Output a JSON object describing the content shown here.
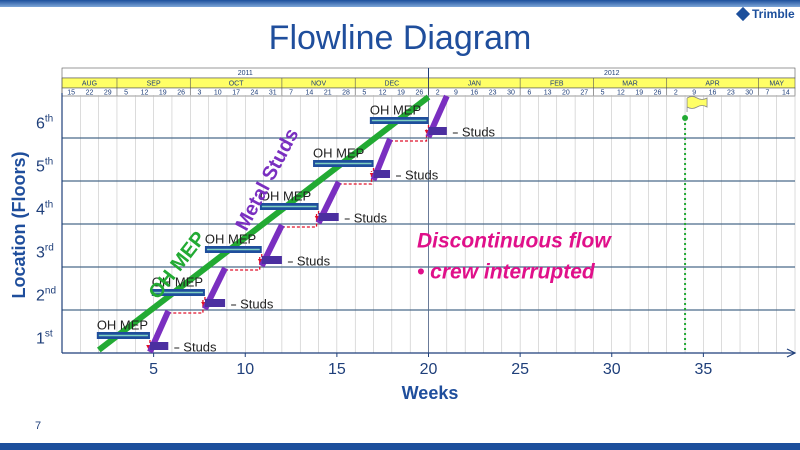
{
  "header": {
    "logo": "Trimble",
    "title": "Flowline Diagram",
    "page_number": "7"
  },
  "chart_data": {
    "type": "flowline",
    "x_label": "Weeks",
    "y_label": "Location (Floors)",
    "xlim": [
      0,
      40
    ],
    "xticks": [
      5,
      10,
      15,
      20,
      25,
      30,
      35
    ],
    "categories": [
      [
        "1",
        "st"
      ],
      [
        "2",
        "nd"
      ],
      [
        "3",
        "rd"
      ],
      [
        "4",
        "th"
      ],
      [
        "5",
        "th"
      ],
      [
        "6",
        "th"
      ]
    ],
    "timeline": {
      "years": [
        {
          "label": "2011",
          "weeks": 20
        },
        {
          "label": "2012",
          "weeks": 20
        }
      ],
      "months": [
        {
          "label": "AUG",
          "weeks": 3
        },
        {
          "label": "SEP",
          "weeks": 4
        },
        {
          "label": "OCT",
          "weeks": 5
        },
        {
          "label": "NOV",
          "weeks": 4
        },
        {
          "label": "DEC",
          "weeks": 4
        },
        {
          "label": "JAN",
          "weeks": 5
        },
        {
          "label": "FEB",
          "weeks": 4
        },
        {
          "label": "MAR",
          "weeks": 4
        },
        {
          "label": "APR",
          "weeks": 5
        },
        {
          "label": "MAY",
          "weeks": 2
        }
      ],
      "days": [
        15,
        22,
        29,
        5,
        12,
        19,
        26,
        3,
        10,
        17,
        24,
        31,
        7,
        14,
        21,
        28,
        5,
        12,
        19,
        26,
        2,
        9,
        16,
        23,
        30,
        6,
        13,
        20,
        27,
        5,
        12,
        19,
        26,
        2,
        9,
        16,
        23,
        30,
        7,
        14
      ]
    },
    "series": [
      {
        "name": "OH MEP",
        "color": "#1f4e9c",
        "start": [
          1.9,
          4.9,
          7.8,
          10.8,
          13.7,
          16.8
        ],
        "end": [
          4.8,
          7.8,
          10.9,
          14.0,
          17.0,
          20.0
        ]
      },
      {
        "name": "Studs",
        "color": "#4b2fa0",
        "start": [
          4.8,
          7.8,
          10.9,
          14.0,
          17.0,
          20.0
        ],
        "end": [
          5.8,
          8.9,
          12.0,
          15.1,
          17.9,
          21.0
        ]
      }
    ],
    "milestone": 34,
    "annotations": {
      "flow_label": "OH MEP",
      "studs_label": "Metal Studs",
      "note": "Discontinuous flow",
      "note_bullet": "• crew interrupted"
    }
  }
}
